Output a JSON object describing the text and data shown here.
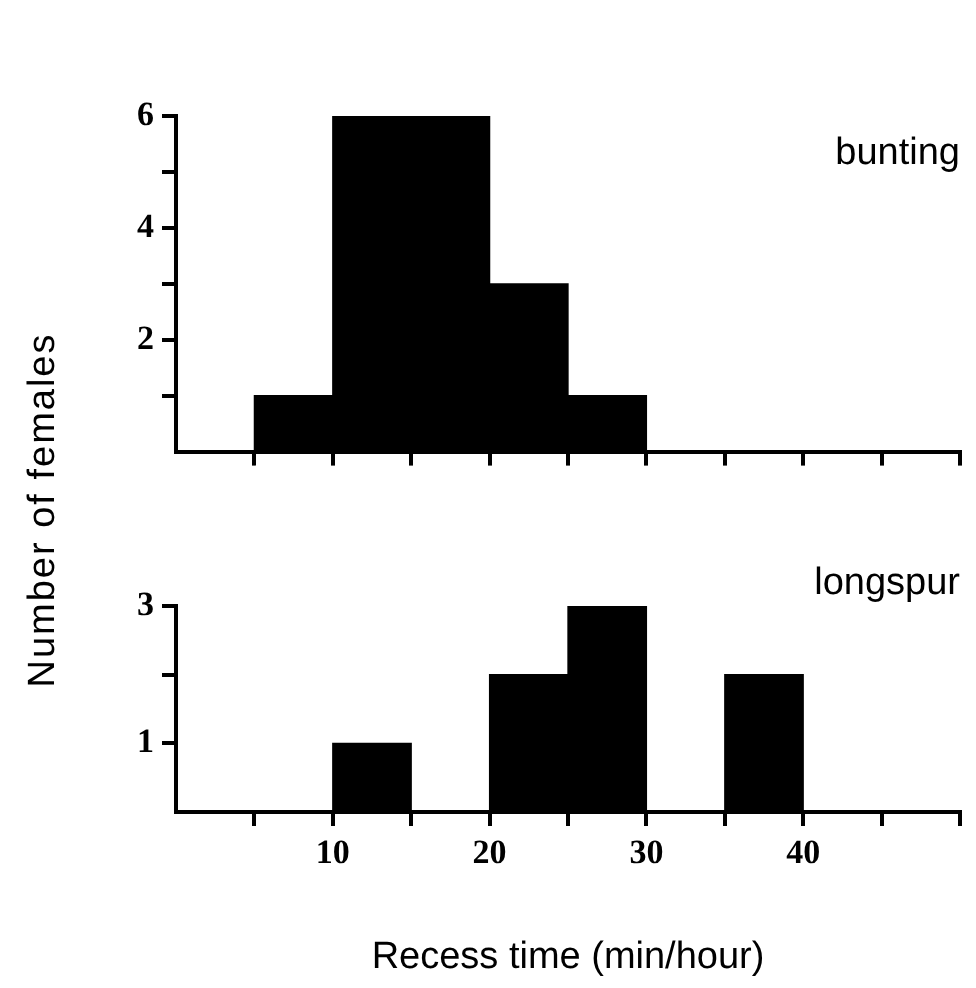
{
  "chart_data": [
    {
      "type": "histogram",
      "ylabel": "Number of females",
      "annotations": [
        "bunting"
      ],
      "bins": [
        5,
        10,
        15,
        20,
        25,
        30
      ],
      "values": [
        1,
        6,
        6,
        3,
        1
      ],
      "color": "#000000",
      "xlim": [
        0,
        50
      ],
      "xticks": [
        {
          "value": 5,
          "label": null
        },
        {
          "value": 10,
          "label": null
        },
        {
          "value": 15,
          "label": null
        },
        {
          "value": 20,
          "label": null
        },
        {
          "value": 25,
          "label": null
        },
        {
          "value": 30,
          "label": null
        },
        {
          "value": 35,
          "label": null
        },
        {
          "value": 40,
          "label": null
        },
        {
          "value": 45,
          "label": null
        },
        {
          "value": 50,
          "label": null
        }
      ],
      "ylim": [
        0,
        6
      ],
      "yticks": [
        {
          "value": 1,
          "label": null
        },
        2,
        {
          "value": 3,
          "label": null
        },
        4,
        {
          "value": 5,
          "label": null
        },
        6
      ],
      "tick_labels": "y"
    },
    {
      "type": "histogram",
      "xlabel": "Recess time (min/hour)",
      "annotations": [
        "longspur"
      ],
      "bins": [
        10,
        15,
        20,
        25,
        30,
        35,
        40
      ],
      "values": [
        1,
        0,
        2,
        3,
        0,
        2
      ],
      "color": "#000000",
      "xlim": [
        0,
        50
      ],
      "xticks": [
        {
          "value": 5,
          "label": null
        },
        10,
        {
          "value": 15,
          "label": null
        },
        20,
        {
          "value": 25,
          "label": null
        },
        30,
        {
          "value": 35,
          "label": null
        },
        40,
        {
          "value": 45,
          "label": null
        },
        {
          "value": 50,
          "label": null
        }
      ],
      "ylim": [
        0,
        3
      ],
      "yticks": [
        1,
        {
          "value": 2,
          "label": null
        },
        3
      ]
    }
  ]
}
